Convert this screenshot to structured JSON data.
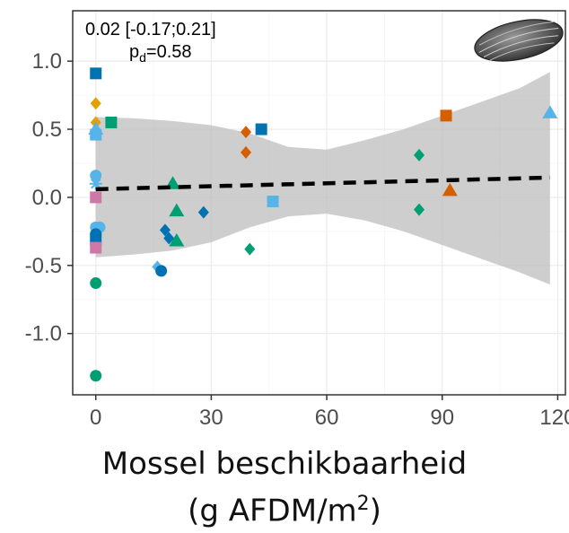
{
  "chart_data": {
    "type": "scatter",
    "title": "",
    "xlabel_line1": "Mossel beschikbaarheid",
    "xlabel_line2_prefix": "(g AFDM/m",
    "xlabel_line2_sup": "2",
    "xlabel_line2_suffix": ")",
    "ylabel": "",
    "xlim": [
      -6,
      122
    ],
    "ylim": [
      -1.45,
      1.37
    ],
    "x_ticks": [
      0,
      30,
      60,
      90,
      120
    ],
    "x_tick_labels": [
      "0",
      "30",
      "60",
      "90",
      "120"
    ],
    "y_ticks": [
      1.0,
      0.5,
      0.0,
      -0.5,
      -1.0
    ],
    "y_tick_labels": [
      "1.0",
      "0.5",
      "0.0",
      "-0.5",
      "-1.0"
    ],
    "grid": true,
    "annotation": {
      "line1": "0.02 [-0.17;0.21]",
      "line2_prefix": "p",
      "line2_sub": "d",
      "line2_suffix": "=0.58"
    },
    "trend_line": {
      "x": [
        0,
        118
      ],
      "y": [
        0.06,
        0.145
      ]
    },
    "ribbon": {
      "x": [
        0,
        10,
        20,
        30,
        40,
        50,
        60,
        70,
        80,
        90,
        100,
        110,
        118
      ],
      "upper": [
        0.59,
        0.58,
        0.56,
        0.53,
        0.47,
        0.37,
        0.35,
        0.42,
        0.5,
        0.6,
        0.7,
        0.8,
        0.92
      ],
      "lower": [
        -0.44,
        -0.42,
        -0.39,
        -0.33,
        -0.22,
        -0.14,
        -0.12,
        -0.17,
        -0.25,
        -0.35,
        -0.45,
        -0.55,
        -0.64
      ]
    },
    "points": [
      {
        "x": 0,
        "y": 0.91,
        "shape": "square",
        "color": "#0072B2"
      },
      {
        "x": 0,
        "y": 0.69,
        "shape": "diamond",
        "color": "#E69F00"
      },
      {
        "x": 0,
        "y": 0.55,
        "shape": "diamond",
        "color": "#E69F00"
      },
      {
        "x": 0,
        "y": 0.5,
        "shape": "triangle",
        "color": "#56B4E9"
      },
      {
        "x": 0,
        "y": 0.46,
        "shape": "square",
        "color": "#56B4E9"
      },
      {
        "x": 4,
        "y": 0.55,
        "shape": "square",
        "color": "#009E73"
      },
      {
        "x": 0,
        "y": 0.16,
        "shape": "circle",
        "color": "#56B4E9"
      },
      {
        "x": 0,
        "y": 0.1,
        "shape": "asterisk",
        "color": "#56B4E9"
      },
      {
        "x": 0,
        "y": 0.0,
        "shape": "square",
        "color": "#CC79A7"
      },
      {
        "x": 0,
        "y": -0.22,
        "shape": "circle",
        "color": "#56B4E9"
      },
      {
        "x": 1,
        "y": -0.22,
        "shape": "circle",
        "color": "#56B4E9"
      },
      {
        "x": 0,
        "y": -0.27,
        "shape": "circle",
        "color": "#0072B2"
      },
      {
        "x": 0,
        "y": -0.31,
        "shape": "square",
        "color": "#0072B2"
      },
      {
        "x": 0,
        "y": -0.37,
        "shape": "square",
        "color": "#CC79A7"
      },
      {
        "x": 0,
        "y": -0.63,
        "shape": "circle",
        "color": "#009E73"
      },
      {
        "x": 0,
        "y": -1.31,
        "shape": "circle",
        "color": "#009E73"
      },
      {
        "x": 16,
        "y": -0.51,
        "shape": "diamond",
        "color": "#56B4E9"
      },
      {
        "x": 17,
        "y": -0.54,
        "shape": "circle",
        "color": "#0072B2"
      },
      {
        "x": 18,
        "y": -0.24,
        "shape": "diamond",
        "color": "#0072B2"
      },
      {
        "x": 19,
        "y": -0.3,
        "shape": "diamond",
        "color": "#0072B2"
      },
      {
        "x": 20,
        "y": 0.1,
        "shape": "triangle",
        "color": "#009E73"
      },
      {
        "x": 21,
        "y": -0.1,
        "shape": "triangle",
        "color": "#009E73"
      },
      {
        "x": 21,
        "y": -0.32,
        "shape": "triangle",
        "color": "#009E73"
      },
      {
        "x": 28,
        "y": -0.11,
        "shape": "diamond",
        "color": "#0072B2"
      },
      {
        "x": 39,
        "y": 0.48,
        "shape": "diamond",
        "color": "#D55E00"
      },
      {
        "x": 39,
        "y": 0.33,
        "shape": "diamond",
        "color": "#D55E00"
      },
      {
        "x": 40,
        "y": -0.38,
        "shape": "diamond",
        "color": "#009E73"
      },
      {
        "x": 43,
        "y": 0.5,
        "shape": "square",
        "color": "#0072B2"
      },
      {
        "x": 46,
        "y": -0.03,
        "shape": "square",
        "color": "#56B4E9"
      },
      {
        "x": 84,
        "y": 0.31,
        "shape": "diamond",
        "color": "#009E73"
      },
      {
        "x": 84,
        "y": -0.09,
        "shape": "diamond",
        "color": "#009E73"
      },
      {
        "x": 91,
        "y": 0.6,
        "shape": "square",
        "color": "#D55E00"
      },
      {
        "x": 92,
        "y": 0.05,
        "shape": "triangle",
        "color": "#D55E00"
      },
      {
        "x": 118,
        "y": 0.62,
        "shape": "triangle",
        "color": "#56B4E9"
      }
    ],
    "icon": "mussel-shell-icon"
  }
}
